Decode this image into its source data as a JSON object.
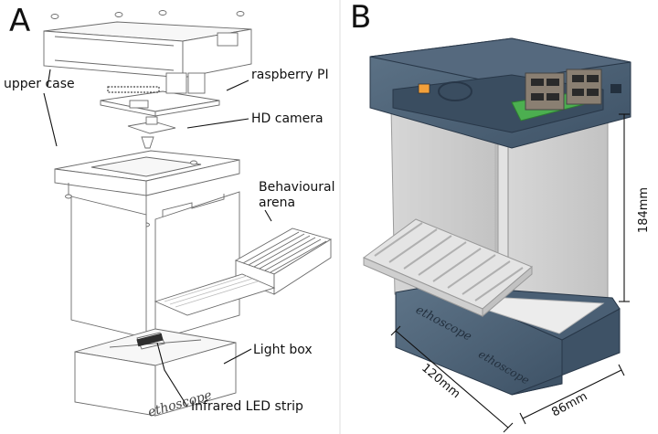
{
  "panel_a": {
    "letter": "A",
    "labels": {
      "upper_case": "upper case",
      "raspberry_pi": "raspberry PI",
      "hd_camera": "HD camera",
      "arena_line1": "Behavioural",
      "arena_line2": "arena",
      "light_box": "Light box",
      "ir_strip": "Infrared LED strip",
      "logo_text": "ethoscope"
    }
  },
  "panel_b": {
    "letter": "B",
    "dimensions": {
      "height": "184mm",
      "depth": "120mm",
      "width": "86mm"
    },
    "colors": {
      "case": "#4f6478",
      "case_dark": "#34465a",
      "acrylic": "#c8c8c8",
      "pcb": "#4caf50",
      "floor": "#e9e9e9"
    }
  }
}
